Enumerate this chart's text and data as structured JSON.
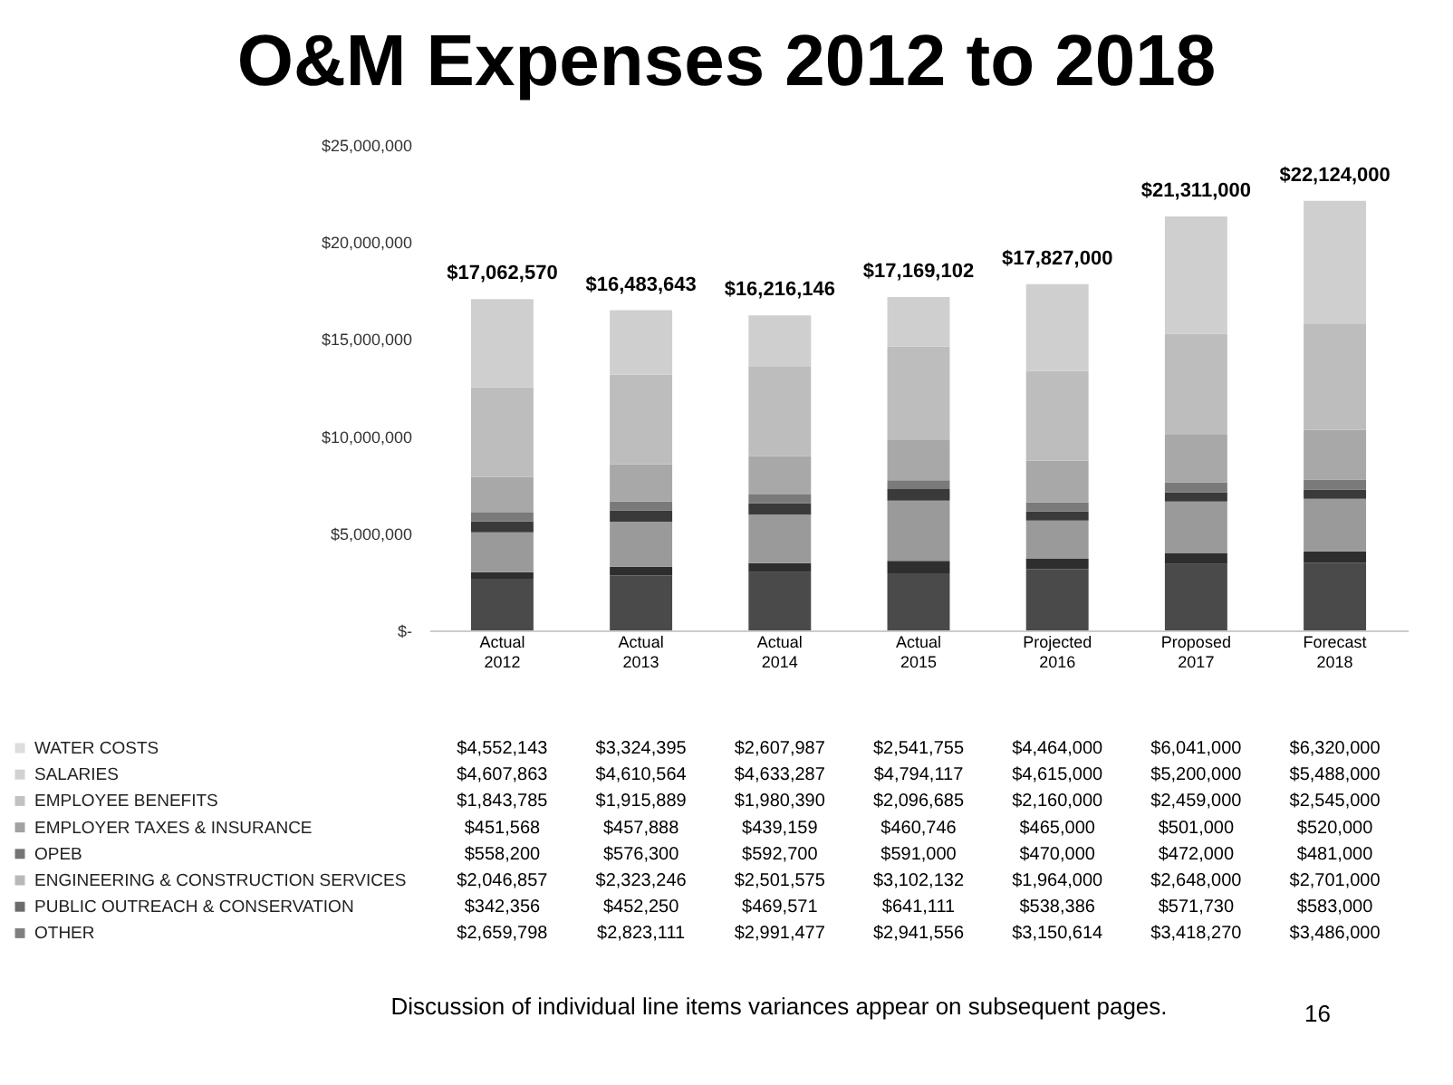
{
  "chart_data": {
    "type": "bar",
    "title": "O&M Expenses 2012 to 2018",
    "stacked": true,
    "legend": "bottom",
    "categories": [
      "Actual 2012",
      "Actual 2013",
      "Actual 2014",
      "Actual 2015",
      "Projected 2016",
      "Proposed 2017",
      "Forecast 2018"
    ],
    "ylim": [
      0,
      25000000
    ],
    "yticks": [
      {
        "value": 0,
        "label": "$-"
      },
      {
        "value": 5000000,
        "label": "$5,000,000"
      },
      {
        "value": 10000000,
        "label": "$10,000,000"
      },
      {
        "value": 15000000,
        "label": "$15,000,000"
      },
      {
        "value": 20000000,
        "label": "$20,000,000"
      },
      {
        "value": 25000000,
        "label": "$25,000,000"
      }
    ],
    "series": [
      {
        "name": "OTHER",
        "color": "#4a4a4a",
        "values": [
          2659798,
          2823111,
          2991477,
          2941556,
          3150614,
          3418270,
          3486000
        ],
        "value_labels": [
          "$2,659,798",
          "$2,823,111",
          "$2,991,477",
          "$2,941,556",
          "$3,150,614",
          "$3,418,270",
          "$3,486,000"
        ]
      },
      {
        "name": "PUBLIC OUTREACH & CONSERVATION",
        "color": "#2e2e2e",
        "values": [
          342356,
          452250,
          469571,
          641111,
          538386,
          571730,
          583000
        ],
        "value_labels": [
          "$342,356",
          "$452,250",
          "$469,571",
          "$641,111",
          "$538,386",
          "$571,730",
          "$583,000"
        ]
      },
      {
        "name": "ENGINEERING & CONSTRUCTION SERVICES",
        "color": "#9a9a9a",
        "values": [
          2046857,
          2323246,
          2501575,
          3102132,
          1964000,
          2648000,
          2701000
        ],
        "value_labels": [
          "$2,046,857",
          "$2,323,246",
          "$2,501,575",
          "$3,102,132",
          "$1,964,000",
          "$2,648,000",
          "$2,701,000"
        ]
      },
      {
        "name": "OPEB",
        "color": "#3a3a3a",
        "values": [
          558200,
          576300,
          592700,
          591000,
          470000,
          472000,
          481000
        ],
        "value_labels": [
          "$558,200",
          "$576,300",
          "$592,700",
          "$591,000",
          "$470,000",
          "$472,000",
          "$481,000"
        ]
      },
      {
        "name": "EMPLOYER TAXES & INSURANCE",
        "color": "#7a7a7a",
        "values": [
          451568,
          457888,
          439159,
          460746,
          465000,
          501000,
          520000
        ],
        "value_labels": [
          "$451,568",
          "$457,888",
          "$439,159",
          "$460,746",
          "$465,000",
          "$501,000",
          "$520,000"
        ]
      },
      {
        "name": "EMPLOYEE BENEFITS",
        "color": "#a8a8a8",
        "values": [
          1843785,
          1915889,
          1980390,
          2096685,
          2160000,
          2459000,
          2545000
        ],
        "value_labels": [
          "$1,843,785",
          "$1,915,889",
          "$1,980,390",
          "$2,096,685",
          "$2,160,000",
          "$2,459,000",
          "$2,545,000"
        ]
      },
      {
        "name": "SALARIES",
        "color": "#bdbdbd",
        "values": [
          4607863,
          4610564,
          4633287,
          4794117,
          4615000,
          5200000,
          5488000
        ],
        "value_labels": [
          "$4,607,863",
          "$4,610,564",
          "$4,633,287",
          "$4,794,117",
          "$4,615,000",
          "$5,200,000",
          "$5,488,000"
        ]
      },
      {
        "name": "WATER COSTS",
        "color": "#cfcfcf",
        "values": [
          4552143,
          3324395,
          2607987,
          2541755,
          4464000,
          6041000,
          6320000
        ],
        "value_labels": [
          "$4,552,143",
          "$3,324,395",
          "$2,607,987",
          "$2,541,755",
          "$4,464,000",
          "$6,041,000",
          "$6,320,000"
        ]
      }
    ],
    "totals": [
      "$17,062,570",
      "$16,483,643",
      "$16,216,146",
      "$17,169,102",
      "$17,827,000",
      "$21,311,000",
      "$22,124,000"
    ],
    "annotations": [
      "Discussion of individual line items variances appear on subsequent pages.",
      "16"
    ]
  }
}
